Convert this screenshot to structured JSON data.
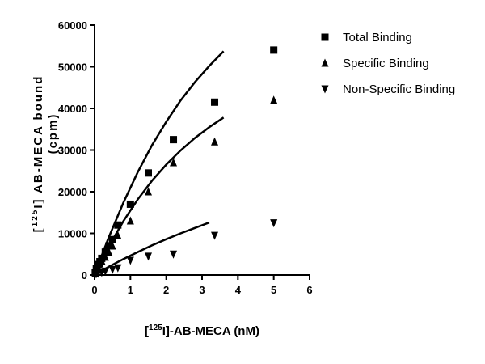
{
  "chart_data": {
    "type": "scatter",
    "title": "",
    "xlabel": {
      "prefix": "[",
      "superscript": "125",
      "suffix": "I]-AB-MECA (nM)"
    },
    "ylabel": {
      "line1_prefix": "[",
      "line1_superscript": "125",
      "line1_suffix": "I] AB-MECA bound",
      "line2": "(cpm)"
    },
    "xlim": [
      0,
      6
    ],
    "ylim": [
      0,
      60000
    ],
    "xticks": [
      "0",
      "1",
      "2",
      "3",
      "4",
      "5",
      "6"
    ],
    "yticks": [
      "0",
      "10000",
      "20000",
      "30000",
      "40000",
      "50000",
      "60000"
    ],
    "grid": false,
    "legend_position": "top-right",
    "series": [
      {
        "name": "Total Binding",
        "marker": "square",
        "x": [
          0.02,
          0.05,
          0.1,
          0.15,
          0.2,
          0.3,
          0.4,
          0.5,
          0.65,
          1.0,
          1.5,
          2.2,
          3.35,
          5.0
        ],
        "y": [
          600,
          1500,
          2500,
          3200,
          4000,
          5500,
          7000,
          8500,
          12000,
          17000,
          24500,
          32500,
          41500,
          54000
        ],
        "fit": [
          0,
          1200,
          2400,
          4700,
          9100,
          17300,
          24600,
          31100,
          36800,
          41900,
          46300,
          50200,
          53700
        ]
      },
      {
        "name": "Specific Binding",
        "marker": "triangle-up",
        "x": [
          0.02,
          0.05,
          0.1,
          0.15,
          0.2,
          0.3,
          0.4,
          0.5,
          0.65,
          1.0,
          1.5,
          2.2,
          3.35,
          5.0
        ],
        "y": [
          400,
          900,
          1800,
          2700,
          3400,
          4300,
          5500,
          7000,
          9500,
          13000,
          20000,
          27000,
          32000,
          42000
        ],
        "fit": [
          0,
          900,
          1800,
          3600,
          6900,
          12900,
          18100,
          22600,
          26500,
          29900,
          32900,
          35500,
          37800
        ]
      },
      {
        "name": "Non-Specific Binding",
        "marker": "triangle-down",
        "x": [
          0.02,
          0.05,
          0.1,
          0.2,
          0.3,
          0.5,
          0.65,
          1.0,
          1.5,
          2.2,
          3.35,
          5.0
        ],
        "y": [
          200,
          300,
          400,
          600,
          900,
          1300,
          1700,
          3500,
          4500,
          5000,
          9500,
          12500
        ],
        "fit": [
          0,
          250,
          500,
          1000,
          2000,
          3800,
          5500,
          7100,
          8600,
          10000,
          11300,
          12600
        ]
      }
    ],
    "fit_x": [
      0,
      0.05,
      0.1,
      0.2,
      0.4,
      0.8,
      1.2,
      1.6,
      2.0,
      2.4,
      2.8,
      3.2,
      3.6
    ]
  }
}
